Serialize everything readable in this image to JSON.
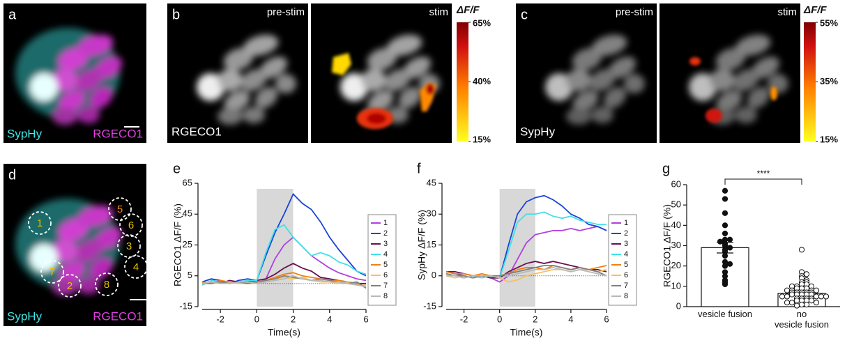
{
  "panels": [
    {
      "letter": "a",
      "labels": [
        "SypHy",
        "RGECO1"
      ]
    },
    {
      "letter": "b",
      "pre": "pre-stim",
      "stim": "stim",
      "channel": "RGECO1",
      "colorbar": {
        "title": "ΔF/F",
        "clim": [
          15,
          65
        ],
        "ticks": [
          {
            "value": 65,
            "label": "65%"
          },
          {
            "value": 40,
            "label": "40%"
          },
          {
            "value": 15,
            "label": "15%"
          }
        ]
      }
    },
    {
      "letter": "c",
      "pre": "pre-stim",
      "stim": "stim",
      "channel": "SypHy",
      "colorbar": {
        "title": "ΔF/F",
        "clim": [
          15,
          55
        ],
        "ticks": [
          {
            "value": 55,
            "label": "55%"
          },
          {
            "value": 35,
            "label": "35%"
          },
          {
            "value": 15,
            "label": "15%"
          }
        ]
      }
    },
    {
      "letter": "d",
      "labels": [
        "SypHy",
        "RGECO1"
      ],
      "rois": [
        "1",
        "2",
        "3",
        "4",
        "5",
        "6",
        "7",
        "8"
      ]
    }
  ],
  "chart_data": [
    {
      "type": "line",
      "label": "e",
      "y_label": "RGECO1 ΔF/F (%)",
      "x_label": "Time(s)",
      "xlim": [
        -3,
        6
      ],
      "ylim": [
        -15,
        65
      ],
      "xticks": [
        -2,
        0,
        2,
        4,
        6
      ],
      "yticks": [
        -15,
        5,
        25,
        45,
        65
      ],
      "shade": [
        0,
        2
      ],
      "x": [
        -3,
        -2.5,
        -2,
        -1.5,
        -1,
        -0.5,
        0,
        0.5,
        1,
        1.5,
        2,
        2.5,
        3,
        3.5,
        4,
        4.5,
        5,
        5.5,
        6
      ],
      "series": [
        {
          "name": "1",
          "color": "#b040e0",
          "values": [
            1,
            3,
            0,
            1,
            1,
            2,
            0,
            3,
            16,
            25,
            30,
            24,
            18,
            14,
            10,
            7,
            5,
            3,
            2
          ]
        },
        {
          "name": "2",
          "color": "#1a44d8",
          "values": [
            1,
            3,
            2,
            0,
            2,
            3,
            2,
            18,
            33,
            45,
            58,
            52,
            48,
            40,
            30,
            22,
            15,
            8,
            5
          ]
        },
        {
          "name": "3",
          "color": "#6a1050",
          "values": [
            0,
            1,
            0,
            2,
            1,
            1,
            2,
            3,
            6,
            10,
            13,
            10,
            8,
            4,
            3,
            2,
            1,
            0,
            0
          ]
        },
        {
          "name": "4",
          "color": "#40e0e8",
          "values": [
            -1,
            2,
            1,
            0,
            1,
            2,
            2,
            20,
            35,
            38,
            30,
            24,
            18,
            20,
            18,
            14,
            12,
            8,
            6
          ]
        },
        {
          "name": "5",
          "color": "#f08010",
          "values": [
            1,
            0,
            2,
            1,
            0,
            1,
            1,
            2,
            4,
            6,
            7,
            5,
            4,
            3,
            2,
            2,
            1,
            0,
            -2
          ]
        },
        {
          "name": "6",
          "color": "#f8c060",
          "values": [
            0,
            1,
            0,
            1,
            0,
            0,
            0,
            2,
            3,
            4,
            3,
            4,
            2,
            1,
            1,
            0,
            1,
            -1,
            -1
          ]
        },
        {
          "name": "7",
          "color": "#808080",
          "values": [
            0,
            0,
            1,
            0,
            1,
            0,
            1,
            2,
            3,
            5,
            4,
            3,
            2,
            3,
            2,
            1,
            0,
            1,
            -3
          ]
        },
        {
          "name": "8",
          "color": "#b8b8b8",
          "values": [
            0,
            1,
            0,
            0,
            1,
            1,
            0,
            1,
            2,
            3,
            5,
            3,
            2,
            2,
            1,
            1,
            0,
            -1,
            -2
          ]
        }
      ]
    },
    {
      "type": "line",
      "label": "f",
      "y_label": "SypHy ΔF/F (%)",
      "x_label": "Time(s)",
      "xlim": [
        -3,
        6
      ],
      "ylim": [
        -15,
        45
      ],
      "xticks": [
        -2,
        0,
        2,
        4,
        6
      ],
      "yticks": [
        -15,
        0,
        15,
        30,
        45
      ],
      "shade": [
        0,
        2
      ],
      "x": [
        -3,
        -2.5,
        -2,
        -1.5,
        -1,
        -0.5,
        0,
        0.5,
        1,
        1.5,
        2,
        2.5,
        3,
        3.5,
        4,
        4.5,
        5,
        5.5,
        6
      ],
      "series": [
        {
          "name": "1",
          "color": "#b040e0",
          "values": [
            1,
            0,
            -1,
            0,
            0,
            -1,
            -3,
            0,
            8,
            16,
            20,
            21,
            22,
            22,
            23,
            22,
            23,
            24,
            22
          ]
        },
        {
          "name": "2",
          "color": "#1a44d8",
          "values": [
            2,
            1,
            0,
            -1,
            0,
            -1,
            -1,
            15,
            30,
            36,
            38,
            39,
            37,
            34,
            30,
            28,
            25,
            24,
            22
          ]
        },
        {
          "name": "3",
          "color": "#6a1050",
          "values": [
            2,
            2,
            1,
            0,
            0,
            -1,
            -1,
            2,
            4,
            6,
            7,
            6,
            7,
            6,
            5,
            4,
            3,
            3,
            2
          ]
        },
        {
          "name": "4",
          "color": "#40e0e8",
          "values": [
            1,
            0,
            -1,
            0,
            -1,
            0,
            -1,
            12,
            26,
            30,
            30,
            31,
            29,
            28,
            29,
            27,
            26,
            25,
            25
          ]
        },
        {
          "name": "5",
          "color": "#f08010",
          "values": [
            2,
            1,
            1,
            0,
            1,
            0,
            0,
            1,
            3,
            4,
            4,
            3,
            5,
            4,
            3,
            4,
            3,
            4,
            5
          ]
        },
        {
          "name": "6",
          "color": "#f8c060",
          "values": [
            0,
            -1,
            0,
            -1,
            0,
            0,
            -1,
            -3,
            -2,
            0,
            1,
            2,
            3,
            3,
            2,
            3,
            3,
            2,
            3
          ]
        },
        {
          "name": "7",
          "color": "#808080",
          "values": [
            1,
            0,
            0,
            -1,
            0,
            0,
            0,
            1,
            2,
            3,
            4,
            5,
            5,
            4,
            3,
            4,
            3,
            2,
            0
          ]
        },
        {
          "name": "8",
          "color": "#b8b8b8",
          "values": [
            0,
            0,
            -1,
            0,
            0,
            0,
            -1,
            0,
            1,
            2,
            3,
            3,
            4,
            3,
            2,
            3,
            2,
            1,
            0
          ]
        }
      ]
    },
    {
      "type": "bar",
      "label": "g",
      "y_label": "RGECO1 ΔF/F (%)",
      "annotation": "****",
      "categories": [
        "vesicle fusion",
        "no\nvesicle fusion"
      ],
      "ylim": [
        0,
        60
      ],
      "yticks": [
        0,
        10,
        20,
        30,
        40,
        50,
        60
      ],
      "values": [
        29,
        6.5
      ],
      "errors": [
        2.6,
        0.8
      ],
      "points": [
        [
          57,
          53,
          46,
          40,
          36,
          33,
          33,
          32,
          31,
          30,
          29,
          28,
          27,
          25,
          22,
          21,
          20,
          17,
          15,
          13,
          12,
          11
        ],
        [
          28,
          17,
          16,
          15,
          14,
          13,
          12,
          12,
          11,
          11,
          10,
          10,
          10,
          9,
          9,
          9,
          8,
          8,
          8,
          8,
          7,
          7,
          7,
          7,
          7,
          6,
          6,
          6,
          6,
          6,
          5,
          5,
          5,
          5,
          5,
          4,
          4,
          4,
          4,
          3,
          3,
          3,
          3,
          2,
          2,
          2,
          1,
          1,
          0.5
        ]
      ]
    }
  ]
}
